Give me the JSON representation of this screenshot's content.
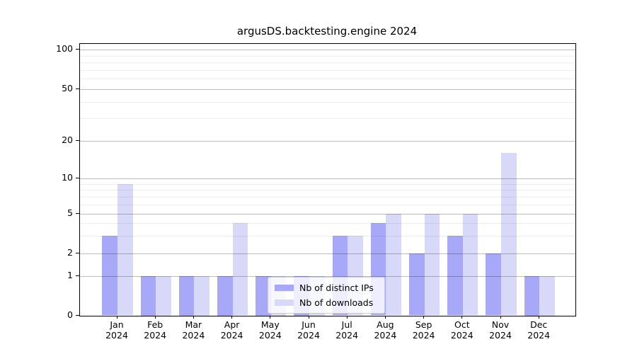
{
  "chart_data": {
    "type": "bar",
    "title": "argusDS.backtesting.engine 2024",
    "categories": [
      "Jan 2024",
      "Feb 2024",
      "Mar 2024",
      "Apr 2024",
      "May 2024",
      "Jun 2024",
      "Jul 2024",
      "Aug 2024",
      "Sep 2024",
      "Oct 2024",
      "Nov 2024",
      "Dec 2024"
    ],
    "x_tick_months": [
      "Jan",
      "Feb",
      "Mar",
      "Apr",
      "May",
      "Jun",
      "Jul",
      "Aug",
      "Sep",
      "Oct",
      "Nov",
      "Dec"
    ],
    "x_tick_year": "2024",
    "series": [
      {
        "name": "Nb of distinct IPs",
        "color": "#a8a8f8",
        "values": [
          3,
          1,
          1,
          1,
          1,
          1,
          3,
          4,
          2,
          3,
          2,
          1
        ]
      },
      {
        "name": "Nb of downloads",
        "color": "#d8d8f8",
        "values": [
          9,
          1,
          1,
          4,
          1,
          1,
          3,
          5,
          5,
          5,
          16,
          1
        ]
      }
    ],
    "y_major_ticks": [
      100,
      50,
      20,
      10,
      5,
      2,
      1,
      0
    ],
    "y_minor_gridlines": [
      3,
      4,
      6,
      7,
      8,
      9,
      30,
      40,
      60,
      70,
      80,
      90
    ],
    "yscale": "log above 1, linear from 0 to 1",
    "ylim": [
      0,
      110
    ],
    "grid": "both",
    "legend_position": "lower center"
  },
  "colors": {
    "bar_distinct_ips": "#a8a8f8",
    "bar_downloads": "#d8d8f8",
    "grid_major": "#bfbfbf",
    "grid_minor": "#ededed",
    "axis": "#000000",
    "background": "#ffffff"
  }
}
